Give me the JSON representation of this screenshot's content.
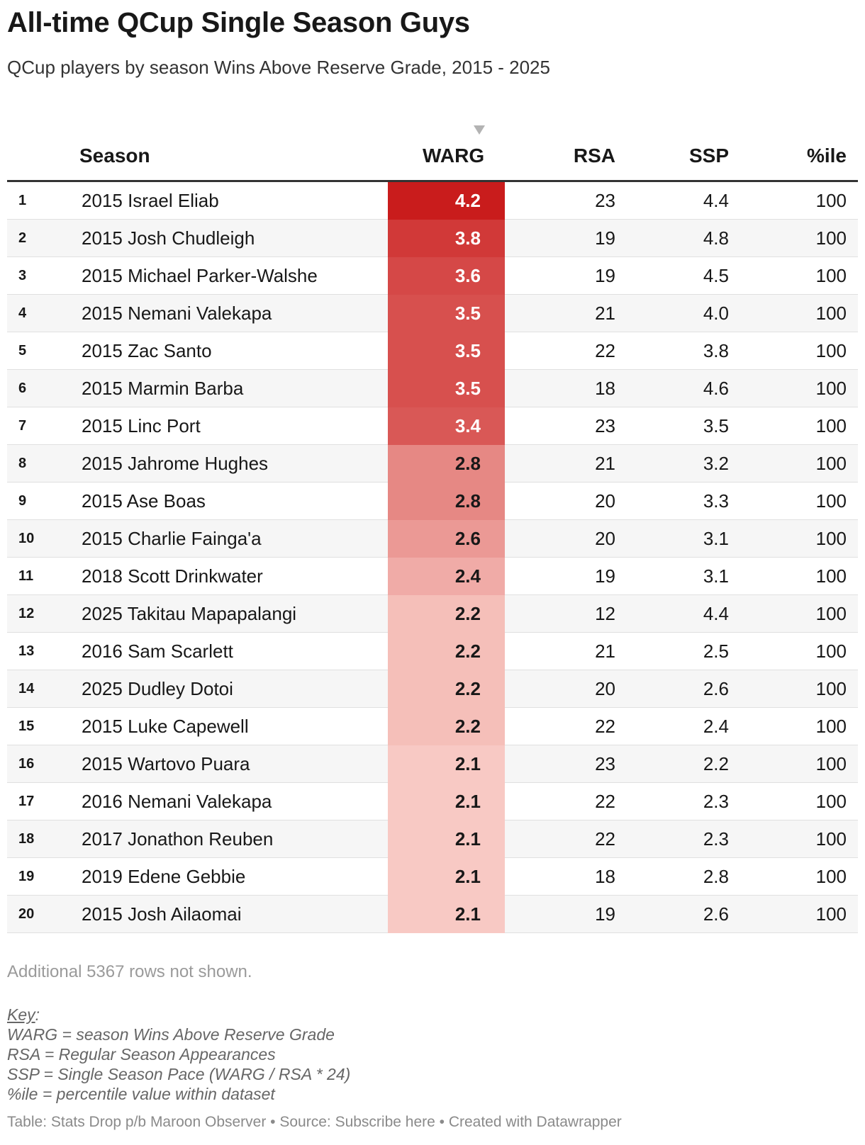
{
  "header": {
    "title": "All-time QCup Single Season Guys",
    "subtitle": "QCup players by season Wins Above Reserve Grade, 2015 - 2025"
  },
  "columns": {
    "season": "Season",
    "warg": "WARG",
    "rsa": "RSA",
    "ssp": "SSP",
    "ile": "%ile"
  },
  "colors": {
    "warg_scale_low": "#fcd7d1",
    "warg_scale_high": "#c91c1c",
    "text_dark": "#181818",
    "text_light": "#ffffff"
  },
  "chart_data": {
    "type": "table",
    "sorted_by": "WARG",
    "sort_order": "descending",
    "rows": [
      {
        "rank": "1",
        "season": "2015 Israel Eliab",
        "warg": "4.2",
        "rsa": "23",
        "ssp": "4.4",
        "ile": "100"
      },
      {
        "rank": "2",
        "season": "2015 Josh Chudleigh",
        "warg": "3.8",
        "rsa": "19",
        "ssp": "4.8",
        "ile": "100"
      },
      {
        "rank": "3",
        "season": "2015 Michael Parker-Walshe",
        "warg": "3.6",
        "rsa": "19",
        "ssp": "4.5",
        "ile": "100"
      },
      {
        "rank": "4",
        "season": "2015 Nemani Valekapa",
        "warg": "3.5",
        "rsa": "21",
        "ssp": "4.0",
        "ile": "100"
      },
      {
        "rank": "5",
        "season": "2015 Zac Santo",
        "warg": "3.5",
        "rsa": "22",
        "ssp": "3.8",
        "ile": "100"
      },
      {
        "rank": "6",
        "season": "2015 Marmin Barba",
        "warg": "3.5",
        "rsa": "18",
        "ssp": "4.6",
        "ile": "100"
      },
      {
        "rank": "7",
        "season": "2015 Linc Port",
        "warg": "3.4",
        "rsa": "23",
        "ssp": "3.5",
        "ile": "100"
      },
      {
        "rank": "8",
        "season": "2015 Jahrome Hughes",
        "warg": "2.8",
        "rsa": "21",
        "ssp": "3.2",
        "ile": "100"
      },
      {
        "rank": "9",
        "season": "2015 Ase Boas",
        "warg": "2.8",
        "rsa": "20",
        "ssp": "3.3",
        "ile": "100"
      },
      {
        "rank": "10",
        "season": "2015 Charlie Fainga'a",
        "warg": "2.6",
        "rsa": "20",
        "ssp": "3.1",
        "ile": "100"
      },
      {
        "rank": "11",
        "season": "2018 Scott Drinkwater",
        "warg": "2.4",
        "rsa": "19",
        "ssp": "3.1",
        "ile": "100"
      },
      {
        "rank": "12",
        "season": "2025 Takitau Mapapalangi",
        "warg": "2.2",
        "rsa": "12",
        "ssp": "4.4",
        "ile": "100"
      },
      {
        "rank": "13",
        "season": "2016 Sam Scarlett",
        "warg": "2.2",
        "rsa": "21",
        "ssp": "2.5",
        "ile": "100"
      },
      {
        "rank": "14",
        "season": "2025 Dudley Dotoi",
        "warg": "2.2",
        "rsa": "20",
        "ssp": "2.6",
        "ile": "100"
      },
      {
        "rank": "15",
        "season": "2015 Luke Capewell",
        "warg": "2.2",
        "rsa": "22",
        "ssp": "2.4",
        "ile": "100"
      },
      {
        "rank": "16",
        "season": "2015 Wartovo Puara",
        "warg": "2.1",
        "rsa": "23",
        "ssp": "2.2",
        "ile": "100"
      },
      {
        "rank": "17",
        "season": "2016 Nemani Valekapa",
        "warg": "2.1",
        "rsa": "22",
        "ssp": "2.3",
        "ile": "100"
      },
      {
        "rank": "18",
        "season": "2017 Jonathon Reuben",
        "warg": "2.1",
        "rsa": "22",
        "ssp": "2.3",
        "ile": "100"
      },
      {
        "rank": "19",
        "season": "2019 Edene Gebbie",
        "warg": "2.1",
        "rsa": "18",
        "ssp": "2.8",
        "ile": "100"
      },
      {
        "rank": "20",
        "season": "2015 Josh Ailaomai",
        "warg": "2.1",
        "rsa": "19",
        "ssp": "2.6",
        "ile": "100"
      }
    ]
  },
  "notes": {
    "rows_hidden": "Additional 5367 rows not shown."
  },
  "key": {
    "title": "Key",
    "colon": ":",
    "lines": [
      "WARG = season Wins Above Reserve Grade",
      "RSA = Regular Season Appearances",
      "SSP = Single Season Pace (WARG / RSA * 24)",
      "%ile = percentile value within dataset"
    ]
  },
  "footer": {
    "text": "Table: Stats Drop p/b Maroon Observer • Source: Subscribe here • Created with Datawrapper"
  }
}
